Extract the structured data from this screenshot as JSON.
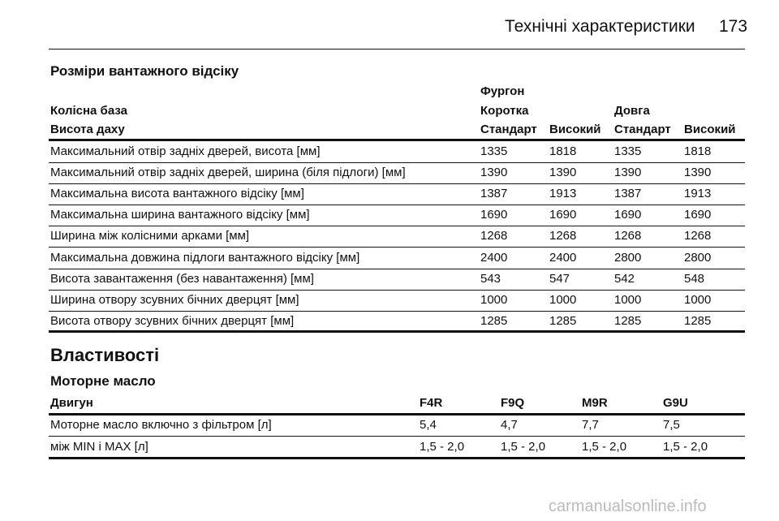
{
  "header": {
    "title": "Технічні характеристики",
    "page": "173"
  },
  "cargo": {
    "title": "Розміри вантажного відсіку",
    "table": {
      "group": "Фургон",
      "wheelbase_label": "Колісна база",
      "wheelbases": [
        "Коротка",
        "Довга"
      ],
      "roof_label": "Висота даху",
      "roofs": [
        "Стандарт",
        "Високий",
        "Стандарт",
        "Високий"
      ],
      "rows": [
        [
          "Максимальний отвір задніх дверей, висота [мм]",
          "1335",
          "1818",
          "1335",
          "1818"
        ],
        [
          "Максимальний отвір задніх дверей, ширина (біля підлоги) [мм]",
          "1390",
          "1390",
          "1390",
          "1390"
        ],
        [
          "Максимальна висота вантажного відсіку [мм]",
          "1387",
          "1913",
          "1387",
          "1913"
        ],
        [
          "Максимальна ширина вантажного відсіку [мм]",
          "1690",
          "1690",
          "1690",
          "1690"
        ],
        [
          "Ширина між колісними арками [мм]",
          "1268",
          "1268",
          "1268",
          "1268"
        ],
        [
          "Максимальна довжина підлоги вантажного відсіку [мм]",
          "2400",
          "2400",
          "2800",
          "2800"
        ],
        [
          "Висота завантаження (без навантаження) [мм]",
          "543",
          "547",
          "542",
          "548"
        ],
        [
          "Ширина отвору зсувних бічних дверцят [мм]",
          "1000",
          "1000",
          "1000",
          "1000"
        ],
        [
          "Висота отвору зсувних бічних дверцят [мм]",
          "1285",
          "1285",
          "1285",
          "1285"
        ]
      ]
    }
  },
  "properties": {
    "title": "Властивості",
    "oil": {
      "title": "Моторне масло",
      "table": {
        "header": [
          "Двигун",
          "F4R",
          "F9Q",
          "M9R",
          "G9U"
        ],
        "rows": [
          [
            "Моторне масло включно з фільтром [л]",
            "5,4",
            "4,7",
            "7,7",
            "7,5"
          ],
          [
            "між MIN і MAX [л]",
            "1,5 - 2,0",
            "1,5 - 2,0",
            "1,5 - 2,0",
            "1,5 - 2,0"
          ]
        ]
      }
    }
  },
  "watermark": "carmanualsonline.info"
}
